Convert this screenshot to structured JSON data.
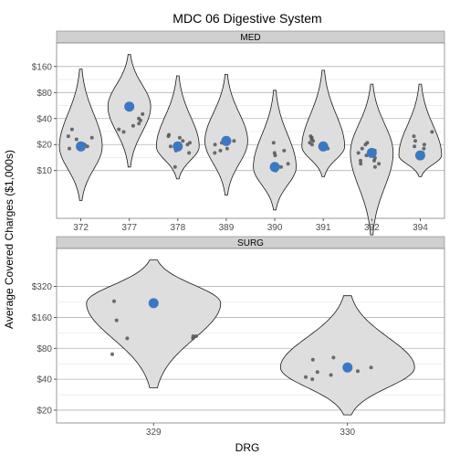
{
  "chart_data": {
    "type": "violin",
    "title": "MDC 06 Digestive System",
    "xlabel": "DRG",
    "ylabel": "Average Covered Charges ($1,000s)",
    "y_scale": "log2",
    "colors": {
      "violin_fill": "#dedede",
      "violin_stroke": "#1a1a1a",
      "point": "#555555",
      "mean_point": "#3b78c2",
      "strip_fill": "#d0d0d0",
      "grid_major": "#b3b3b3",
      "grid_minor": "#e5e5e5"
    },
    "panels": [
      {
        "strip_label": "MED",
        "y_ticks": [
          {
            "value": 10,
            "label": "$10"
          },
          {
            "value": 20,
            "label": "$20"
          },
          {
            "value": 40,
            "label": "$40"
          },
          {
            "value": 80,
            "label": "$80"
          },
          {
            "value": 160,
            "label": "$160"
          }
        ],
        "ylim": [
          2.8,
          300
        ],
        "categories": [
          "372",
          "377",
          "378",
          "389",
          "390",
          "391",
          "392",
          "394"
        ],
        "groups": [
          {
            "drg": "372",
            "mean": 19,
            "violin_range": [
              4.5,
              150
            ],
            "points": [
              19,
              20,
              23,
              25,
              30,
              20,
              18,
              24
            ]
          },
          {
            "drg": "377",
            "mean": 55,
            "violin_range": [
              11,
              220
            ],
            "points": [
              40,
              35,
              38,
              30,
              33,
              45,
              28
            ]
          },
          {
            "drg": "378",
            "mean": 19,
            "violin_range": [
              8,
              125
            ],
            "points": [
              25,
              24,
              20,
              17,
              16,
              21,
              11,
              19,
              22,
              26
            ]
          },
          {
            "drg": "389",
            "mean": 22,
            "violin_range": [
              5.2,
              130
            ],
            "points": [
              22,
              20,
              16,
              17,
              18,
              21
            ]
          },
          {
            "drg": "390",
            "mean": 11,
            "violin_range": [
              3.5,
              85
            ],
            "points": [
              16,
              15,
              12,
              11,
              10,
              21,
              17
            ]
          },
          {
            "drg": "391",
            "mean": 19,
            "violin_range": [
              8.5,
              145
            ],
            "points": [
              24,
              21,
              20,
              22,
              18,
              25,
              23
            ]
          },
          {
            "drg": "392",
            "mean": 16,
            "violin_range": [
              1.8,
              100
            ],
            "points": [
              20,
              17,
              14,
              13,
              12,
              11,
              18,
              15,
              16,
              13,
              12,
              21
            ]
          },
          {
            "drg": "394",
            "mean": 15,
            "violin_range": [
              8.5,
              100
            ],
            "points": [
              28,
              25,
              20,
              18,
              22,
              16,
              19
            ]
          }
        ]
      },
      {
        "strip_label": "SURG",
        "y_ticks": [
          {
            "value": 20,
            "label": "$20"
          },
          {
            "value": 40,
            "label": "$40"
          },
          {
            "value": 80,
            "label": "$80"
          },
          {
            "value": 160,
            "label": "$160"
          },
          {
            "value": 320,
            "label": "$320"
          }
        ],
        "ylim": [
          15,
          750
        ],
        "categories": [
          "329",
          "330"
        ],
        "groups": [
          {
            "drg": "329",
            "mean": 220,
            "violin_range": [
              33,
              580
            ],
            "points": [
              230,
              150,
              105,
              105,
              100,
              70,
              100
            ]
          },
          {
            "drg": "330",
            "mean": 52,
            "violin_range": [
              18,
              260
            ],
            "points": [
              48,
              47,
              44,
              42,
              40,
              62,
              65,
              52
            ]
          }
        ]
      }
    ]
  }
}
